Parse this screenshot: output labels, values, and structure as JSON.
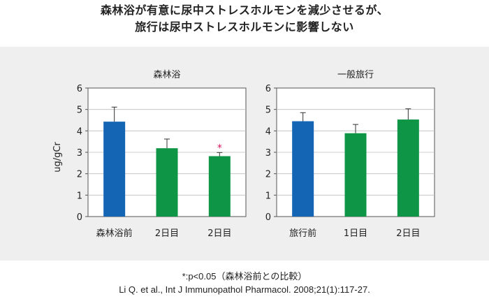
{
  "title_line1": "森林浴が有意に尿中ストレスホルモンを減少させるが、",
  "title_line2": "旅行は尿中ストレスホルモンに影響しない",
  "footer_line1": "*:p<0.05（森林浴前との比較）",
  "footer_line2": "Li Q. et al., Int J Immunopathol Pharmacol. 2008;21(1):117-27.",
  "chart_data": [
    {
      "type": "bar",
      "title": "森林浴",
      "ylabel": "ug/gCr",
      "ylim": [
        0,
        6
      ],
      "yticks": [
        "0",
        "1",
        "2",
        "3",
        "4",
        "5",
        "6"
      ],
      "categories": [
        "森林浴前",
        "2日目",
        "2日目"
      ],
      "values": [
        4.43,
        3.19,
        2.82
      ],
      "errors": [
        0.68,
        0.43,
        0.17
      ],
      "colors": [
        "#1565b5",
        "#0e9646",
        "#0e9646"
      ],
      "annotations": [
        "",
        "",
        "*"
      ],
      "annotation_color": "#d4145a"
    },
    {
      "type": "bar",
      "title": "一般旅行",
      "ylabel": "",
      "ylim": [
        0,
        6
      ],
      "yticks": [
        "0",
        "1",
        "2",
        "3",
        "4",
        "5",
        "6"
      ],
      "categories": [
        "旅行前",
        "1日目",
        "2日目"
      ],
      "values": [
        4.45,
        3.89,
        4.53
      ],
      "errors": [
        0.4,
        0.41,
        0.5
      ],
      "colors": [
        "#1565b5",
        "#0e9646",
        "#0e9646"
      ],
      "annotations": [
        "",
        "",
        ""
      ],
      "annotation_color": "#d4145a"
    }
  ]
}
